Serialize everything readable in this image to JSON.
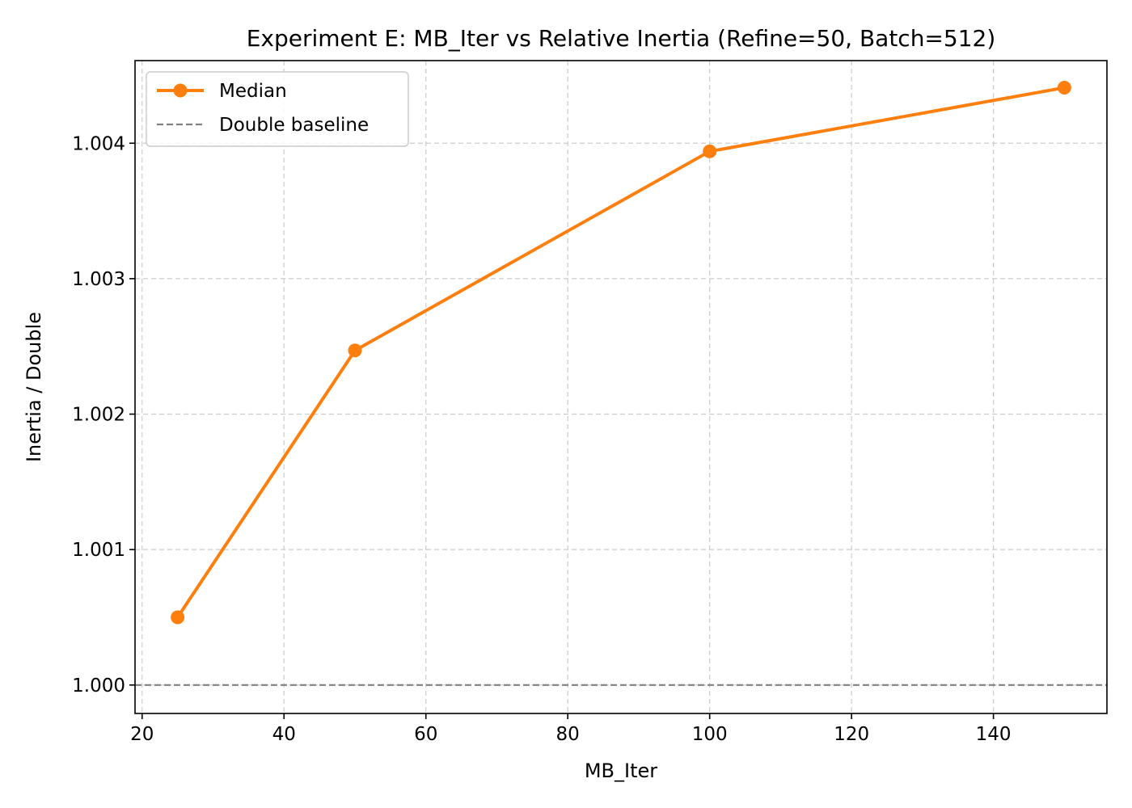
{
  "chart_data": {
    "type": "line",
    "title": "Experiment E: MB_Iter vs Relative Inertia (Refine=50, Batch=512)",
    "xlabel": "MB_Iter",
    "ylabel": "Inertia / Double",
    "xlim": [
      19,
      156
    ],
    "ylim": [
      0.99979,
      1.00461
    ],
    "x_ticks": [
      20,
      40,
      60,
      80,
      100,
      120,
      140
    ],
    "y_ticks": [
      1.0,
      1.001,
      1.002,
      1.003,
      1.004
    ],
    "x_tick_labels": [
      "20",
      "40",
      "60",
      "80",
      "100",
      "120",
      "140"
    ],
    "y_tick_labels": [
      "1.000",
      "1.001",
      "1.002",
      "1.003",
      "1.004"
    ],
    "grid": true,
    "legend_position": "top-left",
    "series": [
      {
        "name": "Median",
        "color": "#ff7f0e",
        "marker": "circle",
        "x": [
          25,
          50,
          100,
          150
        ],
        "y": [
          1.0005,
          1.00247,
          1.00394,
          1.00441
        ]
      }
    ],
    "reference_lines": [
      {
        "name": "Double baseline",
        "y": 1.0,
        "color": "#808080",
        "style": "dashed"
      }
    ]
  }
}
